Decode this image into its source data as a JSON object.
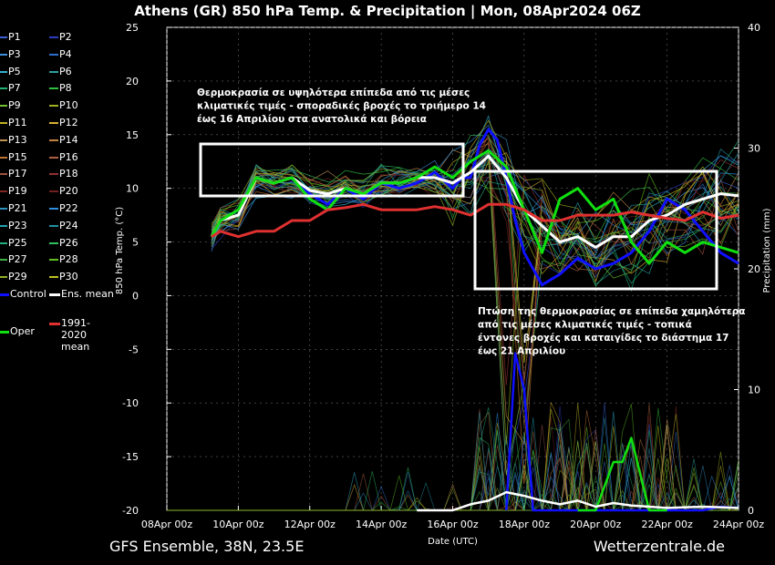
{
  "header": {
    "title": "Athens  (GR)  850 hPa Temp. & Precipitation | Mon, 08Apr2024 06Z"
  },
  "footer": {
    "left": "GFS Ensemble, 38N, 23.5E",
    "right": "Wetterzentrale.de"
  },
  "legend": {
    "items": [
      {
        "label": "P1",
        "color": "#3b5fd6"
      },
      {
        "label": "P2",
        "color": "#2c3cc0"
      },
      {
        "label": "P3",
        "color": "#3f8fe0"
      },
      {
        "label": "P4",
        "color": "#2f6fd0"
      },
      {
        "label": "P5",
        "color": "#30b0d0"
      },
      {
        "label": "P6",
        "color": "#2aa0a0"
      },
      {
        "label": "P7",
        "color": "#20b070"
      },
      {
        "label": "P8",
        "color": "#30c040"
      },
      {
        "label": "P9",
        "color": "#70c030"
      },
      {
        "label": "P10",
        "color": "#a0b020"
      },
      {
        "label": "P11",
        "color": "#c0b020"
      },
      {
        "label": "P12",
        "color": "#d8b030"
      },
      {
        "label": "P13",
        "color": "#c09050"
      },
      {
        "label": "P14",
        "color": "#c08040"
      },
      {
        "label": "P15",
        "color": "#c07030"
      },
      {
        "label": "P16",
        "color": "#b06040"
      },
      {
        "label": "P17",
        "color": "#a05040"
      },
      {
        "label": "P18",
        "color": "#903030"
      },
      {
        "label": "P19",
        "color": "#802820"
      },
      {
        "label": "P20",
        "color": "#702020"
      },
      {
        "label": "P21",
        "color": "#3090c0"
      },
      {
        "label": "P22",
        "color": "#2f8fdf"
      },
      {
        "label": "P23",
        "color": "#20a0b0"
      },
      {
        "label": "P24",
        "color": "#2090a0"
      },
      {
        "label": "P25",
        "color": "#20b080"
      },
      {
        "label": "P26",
        "color": "#30c060"
      },
      {
        "label": "P27",
        "color": "#40b040"
      },
      {
        "label": "P28",
        "color": "#60c020"
      },
      {
        "label": "P29",
        "color": "#90b020"
      },
      {
        "label": "P30",
        "color": "#c0c020"
      },
      {
        "label": "Control",
        "color": "#1010ff"
      },
      {
        "label": "Ens. mean",
        "color": "#ffffff"
      },
      {
        "label": "Oper",
        "color": "#10e010"
      },
      {
        "label": "1991-2020 mean",
        "color": "#e03030"
      }
    ]
  },
  "annotations": {
    "upper": "Θερμοκρασία σε υψηλότερα επίπεδα από τις μέσες κλιματικές τιμές - σποραδικές βροχές το τριήμερο 14 έως 16 Απριλίου στα ανατολικά και βόρεια",
    "lower": "Πτώση της θερμοκρασίας σε επίπεδα χαμηλότερα από τις μέσες κλιματικές τιμές - τοπικά έντονες βροχές και καταιγίδες το διάστημα 17 έως 21 Απριλίου"
  },
  "chart_data": {
    "type": "line",
    "xlabel": "Date (UTC)",
    "ylabel": "850 hPa Temp. (°C)",
    "y2label": "Precipitation (mm)",
    "ylim": [
      -20,
      25
    ],
    "y2lim": [
      0,
      40
    ],
    "xlim": [
      "08Apr 00z",
      "24Apr 00z"
    ],
    "x_ticks": [
      "08Apr 00z",
      "10Apr 00z",
      "12Apr 00z",
      "14Apr 00z",
      "16Apr 00z",
      "18Apr 00z",
      "20Apr 00z",
      "22Apr 00z",
      "24Apr 00z"
    ],
    "y_ticks": [
      25,
      20,
      15,
      10,
      5,
      0,
      -5,
      -10,
      -15,
      -20
    ],
    "y2_ticks": [
      40,
      30,
      20,
      10,
      0
    ],
    "grid": true,
    "series": [
      {
        "name": "Control",
        "kind": "temp",
        "color": "#1010ff",
        "x": [
          1.25,
          1.5,
          2,
          2.5,
          3,
          3.5,
          4,
          4.5,
          5,
          5.5,
          6,
          6.5,
          7,
          7.5,
          8,
          8.25,
          8.5,
          8.75,
          9,
          9.25,
          9.5,
          9.75,
          10,
          10.5,
          11,
          11.5,
          12,
          12.5,
          13,
          13.5,
          14,
          14.5,
          15,
          15.5,
          16
        ],
        "y": [
          5.5,
          7,
          8,
          11,
          10.5,
          11,
          9.5,
          8.5,
          10,
          9,
          10.5,
          10,
          10.5,
          11.5,
          10,
          11,
          11,
          14,
          15.5,
          14.5,
          11,
          7,
          4,
          1,
          2,
          3.5,
          2.5,
          3,
          4,
          6,
          9,
          8,
          6,
          4,
          3
        ]
      },
      {
        "name": "Ens. mean",
        "kind": "temp",
        "color": "#ffffff",
        "x": [
          1.25,
          1.5,
          2,
          2.5,
          3,
          3.5,
          4,
          4.5,
          5,
          5.5,
          6,
          6.5,
          7,
          7.5,
          8,
          8.5,
          9,
          9.5,
          10,
          10.5,
          11,
          11.5,
          12,
          12.5,
          13,
          13.5,
          14,
          14.5,
          15,
          15.5,
          16
        ],
        "y": [
          5.5,
          7,
          7.5,
          11,
          10.5,
          11,
          9.8,
          9.5,
          10,
          9.5,
          10.5,
          10.5,
          11,
          11,
          10.5,
          11.5,
          13,
          11,
          8,
          6.5,
          5,
          5.5,
          4.5,
          5.5,
          5.5,
          7,
          7.5,
          8.5,
          9,
          9.5,
          9.3
        ]
      },
      {
        "name": "Oper",
        "kind": "temp",
        "color": "#10e010",
        "x": [
          1.25,
          1.5,
          2,
          2.5,
          3,
          3.5,
          4,
          4.5,
          5,
          5.5,
          6,
          6.5,
          7,
          7.5,
          8,
          8.5,
          9,
          9.5,
          10,
          10.5,
          11,
          11.5,
          12,
          12.5,
          13,
          13.5,
          14,
          14.5,
          15,
          15.5,
          16
        ],
        "y": [
          5.5,
          7,
          8,
          11,
          10.5,
          11,
          9,
          8,
          10,
          9.5,
          10.5,
          10.5,
          11,
          12,
          11,
          12.5,
          13.5,
          12,
          8,
          4,
          9,
          10,
          8,
          9,
          5,
          3,
          5,
          4,
          5,
          4.5,
          4
        ]
      },
      {
        "name": "1991-2020 mean",
        "kind": "temp",
        "color": "#e03030",
        "x": [
          1.25,
          1.5,
          2,
          2.5,
          3,
          3.5,
          4,
          4.5,
          5,
          5.5,
          6,
          6.5,
          7,
          7.5,
          8,
          8.5,
          9,
          9.5,
          10,
          10.5,
          11,
          11.5,
          12,
          12.5,
          13,
          13.5,
          14,
          14.5,
          15,
          15.5,
          16
        ],
        "y": [
          5.5,
          6,
          5.5,
          6,
          6,
          7,
          7,
          8,
          8.2,
          8.5,
          8,
          8,
          8,
          8.3,
          8,
          7.5,
          8.5,
          8.5,
          8,
          7,
          7,
          7.5,
          7.5,
          7.5,
          7.8,
          7.5,
          7.2,
          7,
          7.8,
          7.2,
          7.5
        ]
      },
      {
        "name": "Control precip",
        "kind": "precip",
        "color": "#1010ff",
        "x": [
          9.5,
          9.75,
          10,
          10.25,
          10.5,
          11,
          12,
          13,
          14,
          15,
          15.5,
          16
        ],
        "y": [
          0,
          13,
          10,
          0,
          0,
          0,
          0,
          0,
          0,
          0,
          0.3,
          0.2
        ]
      },
      {
        "name": "Oper precip",
        "kind": "precip",
        "color": "#10e010",
        "x": [
          11.5,
          12,
          12.5,
          12.75,
          13,
          13.5,
          14
        ],
        "y": [
          0,
          0,
          4,
          4,
          6,
          0,
          0
        ]
      },
      {
        "name": "Ens. mean precip",
        "kind": "precip",
        "color": "#ffffff",
        "x": [
          7,
          8,
          8.5,
          9,
          9.5,
          10,
          10.5,
          11,
          11.5,
          12,
          12.5,
          13,
          13.5,
          14,
          15,
          16
        ],
        "y": [
          0,
          0,
          0.5,
          0.8,
          1.5,
          1.2,
          0.8,
          0.5,
          0.8,
          0.3,
          0.6,
          0.4,
          0.3,
          0.2,
          0.3,
          0.2
        ]
      }
    ]
  }
}
